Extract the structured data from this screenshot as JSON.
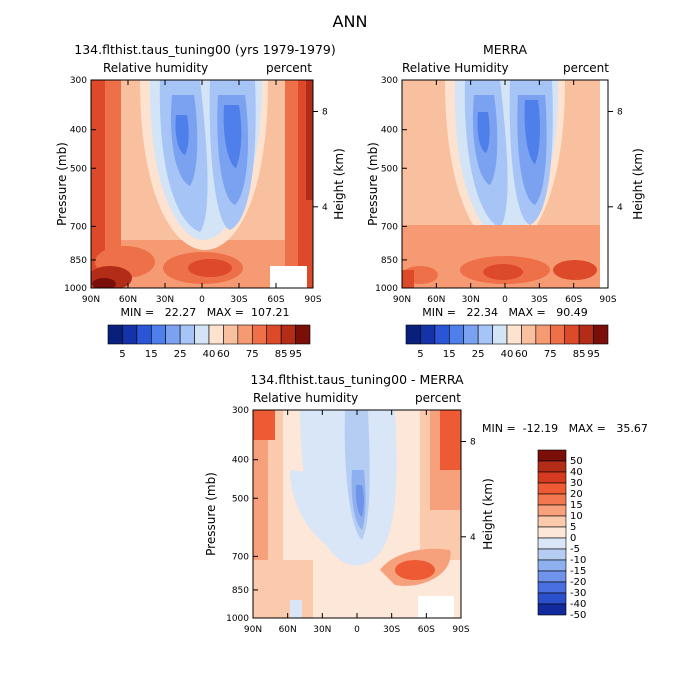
{
  "figure": {
    "title": "ANN"
  },
  "chart_data": [
    {
      "type": "heatmap",
      "title": "134.flthist.taus_tuning00 (yrs 1979-1979)",
      "subtitle_left": "Relative humidity",
      "subtitle_right": "percent",
      "ylabel": "Pressure (mb)",
      "ylabel_right": "Height (km)",
      "x_ticks": [
        "90N",
        "60N",
        "30N",
        "0",
        "30S",
        "60S",
        "90S"
      ],
      "y_ticks": [
        "300",
        "400",
        "500",
        "700",
        "850",
        "1000"
      ],
      "y_ticks_right": [
        "8",
        "4"
      ],
      "stats": "MIN =   22.27   MAX =  107.21",
      "colorbar_labels": [
        "5",
        "15",
        "25",
        "40",
        "60",
        "75",
        "85",
        "95"
      ]
    },
    {
      "type": "heatmap",
      "title": "MERRA",
      "subtitle_left": "Relative Humidity",
      "subtitle_right": "percent",
      "ylabel": "Pressure (mb)",
      "ylabel_right": "Height (km)",
      "x_ticks": [
        "90N",
        "60N",
        "30N",
        "0",
        "30S",
        "60S",
        "90S"
      ],
      "y_ticks": [
        "300",
        "400",
        "500",
        "700",
        "850",
        "1000"
      ],
      "y_ticks_right": [
        "8",
        "4"
      ],
      "stats": "MIN =   22.34   MAX =   90.49",
      "colorbar_labels": [
        "5",
        "15",
        "25",
        "40",
        "60",
        "75",
        "85",
        "95"
      ]
    },
    {
      "type": "heatmap",
      "title": "134.flthist.taus_tuning00 - MERRA",
      "subtitle_left": "Relative humidity",
      "subtitle_right": "percent",
      "ylabel": "Pressure (mb)",
      "ylabel_right": "Height (km)",
      "x_ticks": [
        "90N",
        "60N",
        "30N",
        "0",
        "30S",
        "60S",
        "90S"
      ],
      "y_ticks": [
        "300",
        "400",
        "500",
        "700",
        "850",
        "1000"
      ],
      "y_ticks_right": [
        "8",
        "4"
      ],
      "stats": "MIN =  -12.19   MAX =   35.67",
      "colorbar_labels": [
        "50",
        "40",
        "30",
        "20",
        "15",
        "10",
        "5",
        "0",
        "-5",
        "-10",
        "-15",
        "-20",
        "-30",
        "-40",
        "-50"
      ]
    }
  ],
  "colors": {
    "abs_scale": [
      "#08207a",
      "#1433a8",
      "#2a55d6",
      "#4f7fea",
      "#7aa2f0",
      "#a6c4f5",
      "#d4e4f7",
      "#fde2cf",
      "#f9c0a0",
      "#f59a72",
      "#ee7049",
      "#dc4a2a",
      "#b32c18",
      "#7a0f0a"
    ],
    "diff_scale": [
      "#7a0f0a",
      "#b32c18",
      "#d63a20",
      "#ee5a33",
      "#f3784f",
      "#f7a07c",
      "#fbc9ab",
      "#fde7d8",
      "#d9e6f7",
      "#b6cdf3",
      "#8fb0ee",
      "#6f92ea",
      "#4a6fe0",
      "#2c4fcc",
      "#122a9c"
    ]
  }
}
